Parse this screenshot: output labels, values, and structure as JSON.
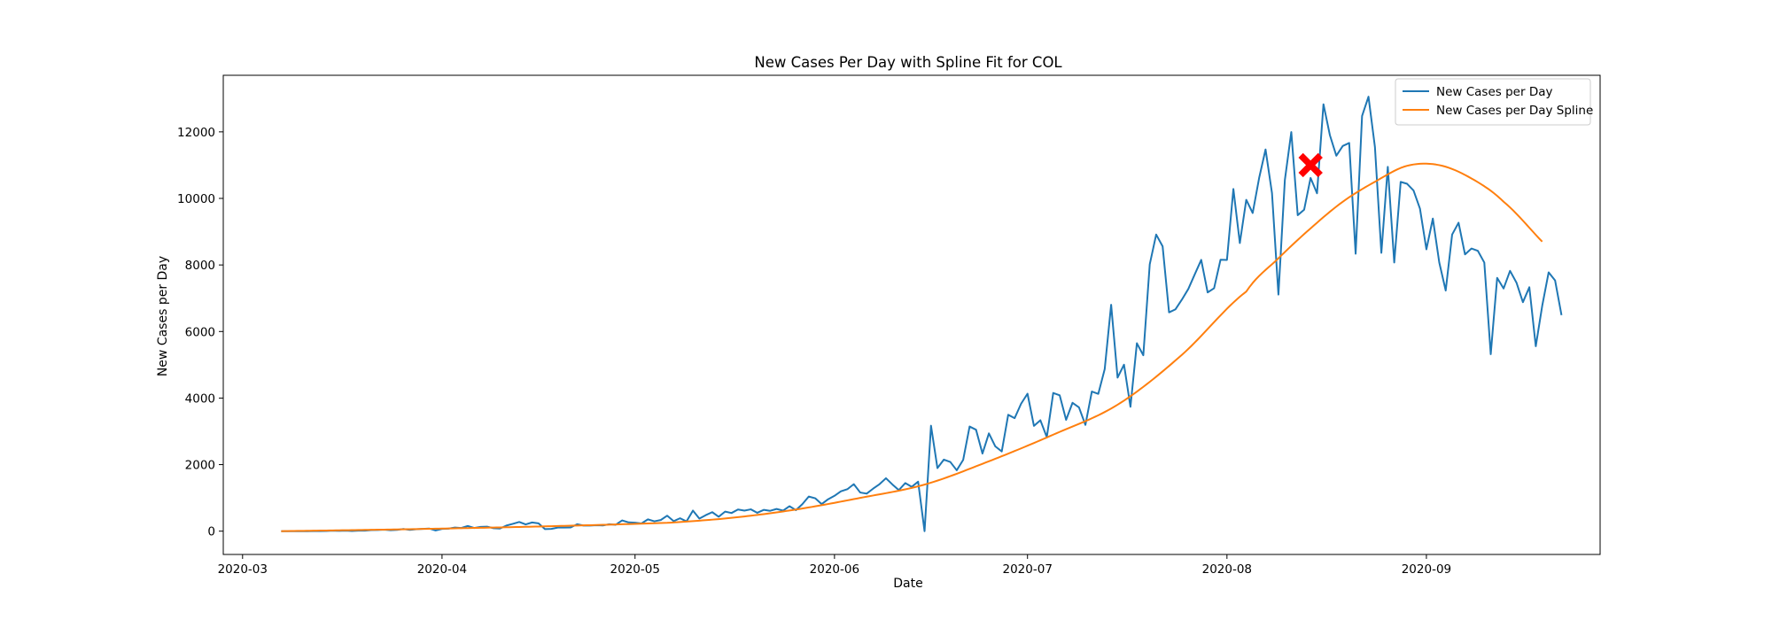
{
  "chart_data": {
    "type": "line",
    "title": "New Cases Per Day with Spline Fit for COL",
    "xlabel": "Date",
    "ylabel": "New Cases per Day",
    "x_start": "2020-03-07",
    "x_end": "2020-09-19",
    "xlim": [
      "2020-02-27",
      "2020-09-28"
    ],
    "ylim": [
      -700,
      13700
    ],
    "x_ticks": [
      "2020-03",
      "2020-04",
      "2020-05",
      "2020-06",
      "2020-07",
      "2020-08",
      "2020-09"
    ],
    "y_ticks": [
      0,
      2000,
      4000,
      6000,
      8000,
      10000,
      12000
    ],
    "grid": false,
    "legend_placement": "top-right",
    "series": [
      {
        "name": "New Cases per Day",
        "color": "#1f77b4",
        "values": [
          0,
          0,
          0,
          3,
          0,
          2,
          2,
          4,
          14,
          10,
          16,
          6,
          14,
          15,
          32,
          34,
          45,
          30,
          37,
          66,
          37,
          57,
          69,
          80,
          22,
          68,
          75,
          110,
          95,
          155,
          95,
          128,
          136,
          89,
          79,
          168,
          220,
          276,
          203,
          262,
          235,
          61,
          68,
          108,
          109,
          111,
          208,
          168,
          168,
          180,
          171,
          207,
          193,
          324,
          264,
          255,
          231,
          355,
          296,
          335,
          465,
          302,
          388,
          293,
          618,
          378,
          482,
          571,
          433,
          588,
          546,
          651,
          617,
          656,
          552,
          640,
          612,
          668,
          617,
          750,
          632,
          811,
          1040,
          989,
          813,
          958,
          1062,
          1197,
          1260,
          1412,
          1162,
          1128,
          1277,
          1412,
          1591,
          1404,
          1234,
          1445,
          1332,
          1487,
          0,
          3170,
          1896,
          2151,
          2080,
          1830,
          2141,
          3145,
          3048,
          2332,
          2938,
          2547,
          2396,
          3497,
          3396,
          3828,
          4131,
          3164,
          3334,
          2825,
          4154,
          4084,
          3346,
          3858,
          3720,
          3193,
          4197,
          4126,
          4870,
          6804,
          4614,
          5003,
          3739,
          5647,
          5286,
          8018,
          8914,
          8560,
          6575,
          6667,
          6960,
          7280,
          7719,
          8151,
          7175,
          7300,
          8157,
          8152,
          10284,
          8658,
          9957,
          9561,
          10612,
          11470,
          10161,
          7109,
          10553,
          11994,
          9496,
          9662,
          10617,
          10154,
          12830,
          11900,
          11282,
          11576,
          11665,
          8338,
          12478,
          13056,
          11545,
          8364,
          10947,
          8074,
          10496,
          10439,
          10238,
          9693,
          8470,
          9395,
          8073,
          7232,
          8914,
          9269,
          8318,
          8493,
          8424,
          8072,
          5319,
          7612,
          7293,
          7822,
          7469,
          6881,
          7330,
          5557,
          6770,
          7779,
          7536,
          6493
        ]
      },
      {
        "name": "New Cases per Day Spline",
        "color": "#ff7f0e",
        "anchors_day": [
          0,
          20,
          40,
          60,
          70,
          80,
          90,
          100,
          110,
          120,
          130,
          140,
          150,
          155,
          160,
          165,
          170,
          175,
          180,
          185,
          190,
          196
        ],
        "anchors_value": [
          0,
          60,
          140,
          250,
          400,
          650,
          1000,
          1400,
          2100,
          2900,
          3800,
          5300,
          7200,
          8200,
          9100,
          9900,
          10500,
          10980,
          11000,
          10600,
          9900,
          8700
        ]
      }
    ],
    "annotations": [
      {
        "type": "marker",
        "shape": "x",
        "color": "#ff0000",
        "x": "2020-08-14",
        "y": 11000
      }
    ]
  }
}
